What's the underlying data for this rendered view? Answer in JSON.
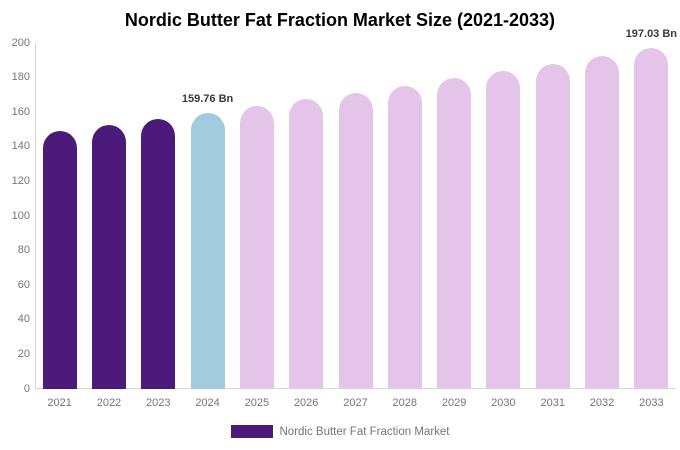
{
  "title": "Nordic Butter Fat Fraction Market Size (2021-2033)",
  "legend": {
    "label": "Nordic Butter Fat Fraction Market",
    "swatch_color": "#4b1a7b"
  },
  "colors": {
    "dark_purple": "#4b1a7b",
    "highlight_blue": "#a3cbdf",
    "light_pink": "#e5c4ea",
    "axis_line": "#d6d6d6",
    "tick_text": "#757575",
    "annotation_text": "#3a3a3a",
    "title_text": "#000000"
  },
  "chart_data": {
    "type": "bar",
    "title": "Nordic Butter Fat Fraction Market Size (2021-2033)",
    "categories": [
      "2021",
      "2022",
      "2023",
      "2024",
      "2025",
      "2026",
      "2027",
      "2028",
      "2029",
      "2030",
      "2031",
      "2032",
      "2033"
    ],
    "values": [
      148.97,
      152.48,
      156.08,
      159.76,
      163.53,
      167.38,
      171.33,
      175.37,
      179.51,
      183.74,
      188.07,
      192.51,
      197.03
    ],
    "bar_colors": [
      "#4b1a7b",
      "#4b1a7b",
      "#4b1a7b",
      "#a3cbdf",
      "#e5c4ea",
      "#e5c4ea",
      "#e5c4ea",
      "#e5c4ea",
      "#e5c4ea",
      "#e5c4ea",
      "#e5c4ea",
      "#e5c4ea",
      "#e5c4ea"
    ],
    "annotations": [
      {
        "category": "2024",
        "text": "159.76 Bn"
      },
      {
        "category": "2033",
        "text": "197.03 Bn"
      }
    ],
    "xlabel": "",
    "ylabel": "",
    "ylim": [
      0,
      200
    ],
    "yticks": [
      0,
      20,
      40,
      60,
      80,
      100,
      120,
      140,
      160,
      180,
      200
    ],
    "grid": false,
    "legend_position": "bottom-center",
    "legend_entries": [
      "Nordic Butter Fat Fraction Market"
    ],
    "unit": "Bn"
  }
}
